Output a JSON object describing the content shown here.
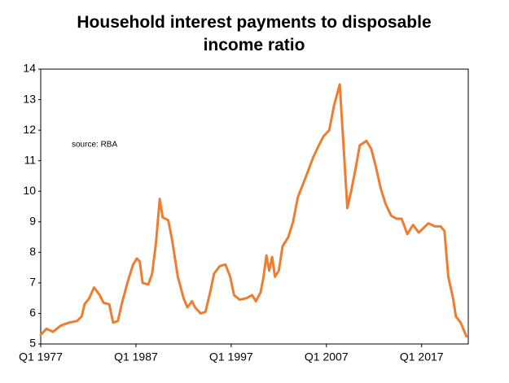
{
  "chart_data": {
    "type": "line",
    "title": "Household interest payments to disposable income ratio",
    "annotation": "source:  RBA",
    "x": [
      1977.0,
      1977.6,
      1978.3,
      1979.1,
      1980.0,
      1980.8,
      1981.3,
      1981.6,
      1982.1,
      1982.6,
      1983.2,
      1983.6,
      1984.2,
      1984.6,
      1985.1,
      1985.5,
      1986.1,
      1986.4,
      1986.7,
      1987.1,
      1987.4,
      1987.7,
      1988.3,
      1988.7,
      1989.1,
      1989.5,
      1989.8,
      1990.4,
      1990.8,
      1991.4,
      1992.0,
      1992.4,
      1992.9,
      1993.2,
      1993.8,
      1994.3,
      1994.8,
      1995.2,
      1995.8,
      1996.4,
      1996.9,
      1997.3,
      1997.9,
      1998.6,
      1999.2,
      1999.6,
      2000.1,
      2000.4,
      2000.7,
      2001.0,
      2001.3,
      2001.6,
      2002.0,
      2002.4,
      2003.0,
      2003.5,
      2004.0,
      2004.5,
      2005.0,
      2005.6,
      2006.2,
      2006.7,
      2007.3,
      2007.8,
      2008.4,
      2008.8,
      2009.2,
      2009.6,
      2010.1,
      2010.5,
      2011.2,
      2011.7,
      2012.2,
      2012.7,
      2013.2,
      2013.8,
      2014.4,
      2014.9,
      2015.5,
      2016.1,
      2016.7,
      2017.2,
      2017.7,
      2018.4,
      2019.0,
      2019.4,
      2019.8,
      2020.3,
      2020.6,
      2021.1,
      2021.7
    ],
    "series": [
      {
        "color": "#ed7d31",
        "values": [
          5.3,
          5.5,
          5.4,
          5.6,
          5.7,
          5.75,
          5.9,
          6.3,
          6.5,
          6.85,
          6.6,
          6.35,
          6.3,
          5.7,
          5.75,
          6.3,
          7.0,
          7.3,
          7.6,
          7.8,
          7.7,
          7.0,
          6.95,
          7.3,
          8.3,
          9.75,
          9.15,
          9.05,
          8.4,
          7.2,
          6.5,
          6.2,
          6.4,
          6.2,
          6.0,
          6.05,
          6.7,
          7.3,
          7.55,
          7.6,
          7.2,
          6.6,
          6.45,
          6.5,
          6.6,
          6.4,
          6.7,
          7.2,
          7.9,
          7.4,
          7.85,
          7.2,
          7.4,
          8.2,
          8.5,
          9.0,
          9.8,
          10.2,
          10.6,
          11.1,
          11.5,
          11.8,
          12.0,
          12.8,
          13.5,
          11.5,
          9.45,
          10.0,
          10.8,
          11.5,
          11.65,
          11.4,
          10.8,
          10.1,
          9.6,
          9.2,
          9.1,
          9.1,
          8.6,
          8.9,
          8.65,
          8.8,
          8.95,
          8.85,
          8.85,
          8.7,
          7.2,
          6.5,
          5.9,
          5.7,
          5.25
        ]
      }
    ],
    "xlim": [
      1977,
      2021.9
    ],
    "xticks": [
      {
        "value": 1977,
        "label": "Q1 1977"
      },
      {
        "value": 1987,
        "label": "Q1 1987"
      },
      {
        "value": 1997,
        "label": "Q1 1997"
      },
      {
        "value": 2007,
        "label": "Q1 2007"
      },
      {
        "value": 2017,
        "label": "Q1 2017"
      }
    ],
    "ylim": [
      5,
      14
    ],
    "yticks": [
      5,
      6,
      7,
      8,
      9,
      10,
      11,
      12,
      13,
      14
    ],
    "grid": false
  }
}
